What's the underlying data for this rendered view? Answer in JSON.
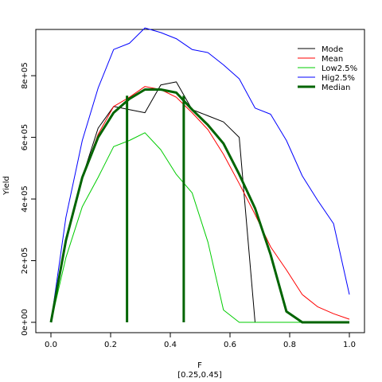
{
  "chart_data": {
    "type": "line",
    "xlabel": "F",
    "subtitle": "[0.25,0.45]",
    "ylabel": "Yield",
    "xlim": [
      0,
      1
    ],
    "ylim": [
      0,
      950000
    ],
    "x_ticks": [
      0,
      0.2,
      0.4,
      0.6,
      0.8,
      1
    ],
    "x_tick_labels": [
      "0.0",
      "0.2",
      "0.4",
      "0.6",
      "0.8",
      "1.0"
    ],
    "y_ticks": [
      0,
      200000,
      400000,
      600000,
      800000
    ],
    "y_tick_labels": [
      "0e+00",
      "2e+05",
      "4e+05",
      "6e+05",
      "8e+05"
    ],
    "grid": false,
    "legend_position": "top-right",
    "series": [
      {
        "name": "Mode",
        "color": "#000000",
        "line_width": 1,
        "x": [
          0,
          0.05,
          0.105,
          0.158,
          0.21,
          0.263,
          0.315,
          0.368,
          0.42,
          0.473,
          0.526,
          0.578,
          0.631,
          0.684,
          0.736,
          0.789,
          0.842,
          0.894,
          0.947,
          1.0
        ],
        "y": [
          0,
          270000,
          470000,
          630000,
          700000,
          690000,
          680000,
          770000,
          780000,
          690000,
          670000,
          650000,
          600000,
          0,
          0,
          0,
          0,
          0,
          0,
          0
        ]
      },
      {
        "name": "Mean",
        "color": "#ff0000",
        "line_width": 1,
        "x": [
          0,
          0.05,
          0.105,
          0.158,
          0.21,
          0.263,
          0.315,
          0.368,
          0.42,
          0.473,
          0.526,
          0.578,
          0.631,
          0.684,
          0.736,
          0.789,
          0.842,
          0.894,
          0.947,
          1.0
        ],
        "y": [
          0,
          270000,
          470000,
          610000,
          700000,
          730000,
          765000,
          755000,
          730000,
          680000,
          625000,
          545000,
          450000,
          350000,
          245000,
          170000,
          90000,
          50000,
          28000,
          10000
        ]
      },
      {
        "name": "Low2.5%",
        "color": "#00cc00",
        "line_width": 1,
        "x": [
          0,
          0.05,
          0.105,
          0.158,
          0.21,
          0.263,
          0.315,
          0.368,
          0.42,
          0.473,
          0.526,
          0.578,
          0.631,
          0.684,
          0.736,
          0.789,
          0.842,
          0.894,
          0.947,
          1.0
        ],
        "y": [
          0,
          210000,
          375000,
          470000,
          570000,
          590000,
          615000,
          560000,
          480000,
          420000,
          260000,
          40000,
          0,
          0,
          0,
          0,
          0,
          0,
          0,
          0
        ]
      },
      {
        "name": "Hig2.5%",
        "color": "#0000ff",
        "line_width": 1,
        "x": [
          0,
          0.05,
          0.105,
          0.158,
          0.21,
          0.263,
          0.315,
          0.368,
          0.42,
          0.473,
          0.526,
          0.578,
          0.631,
          0.684,
          0.736,
          0.789,
          0.842,
          0.894,
          0.947,
          1.0
        ],
        "y": [
          0,
          340000,
          590000,
          760000,
          885000,
          905000,
          955000,
          940000,
          920000,
          885000,
          875000,
          835000,
          790000,
          695000,
          675000,
          590000,
          475000,
          395000,
          320000,
          90000
        ]
      },
      {
        "name": "Median",
        "color": "#006400",
        "line_width": 3,
        "x": [
          0,
          0.05,
          0.105,
          0.158,
          0.21,
          0.263,
          0.315,
          0.368,
          0.42,
          0.473,
          0.526,
          0.578,
          0.631,
          0.684,
          0.736,
          0.789,
          0.842,
          0.894,
          0.947,
          1.0
        ],
        "y": [
          0,
          265000,
          470000,
          600000,
          680000,
          725000,
          755000,
          755000,
          745000,
          690000,
          640000,
          580000,
          480000,
          370000,
          220000,
          35000,
          0,
          0,
          0,
          0
        ]
      }
    ],
    "reference_lines": [
      {
        "x": 0.255,
        "y_top": 735000,
        "color": "#006400",
        "line_width": 3
      },
      {
        "x": 0.445,
        "y_top": 735000,
        "color": "#006400",
        "line_width": 3
      }
    ]
  }
}
